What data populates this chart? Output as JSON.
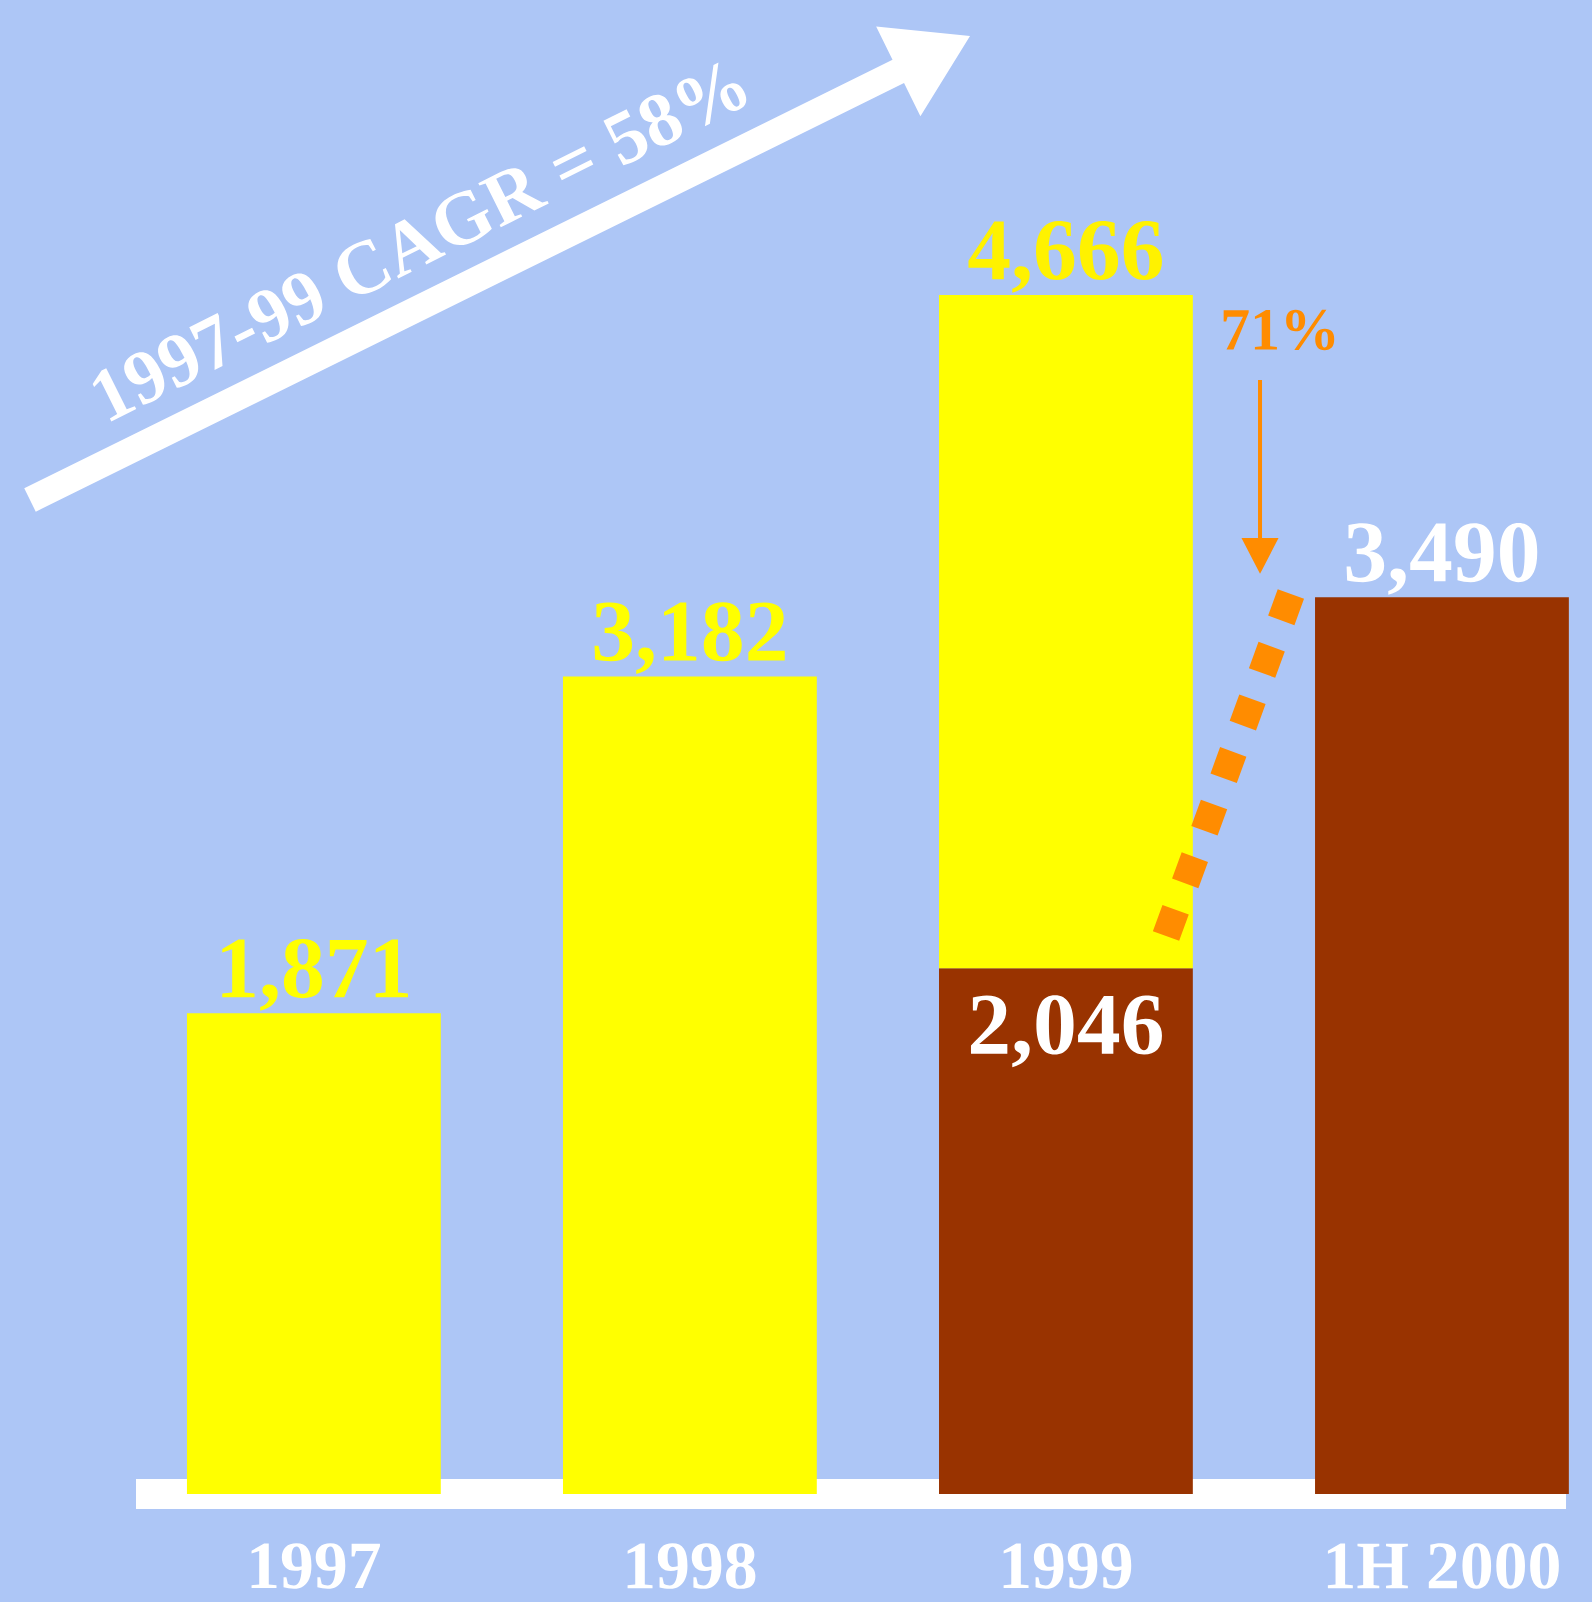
{
  "chart_data": {
    "type": "bar",
    "stacked": true,
    "categories": [
      "1997",
      "1998",
      "1999",
      "1H 2000"
    ],
    "series": [
      {
        "color": "#993300",
        "values": [
          null,
          null,
          2046,
          3490
        ],
        "value_labels": [
          null,
          null,
          "2,046",
          "3,490"
        ]
      },
      {
        "color": "#ffff00",
        "values": [
          1871,
          3182,
          2620,
          null
        ],
        "value_labels": [
          "1,871",
          "3,182",
          null,
          null
        ]
      }
    ],
    "totals": [
      null,
      null,
      "4,666",
      null
    ],
    "annotations": [
      "1997-99 CAGR = 58%",
      "71%"
    ]
  }
}
